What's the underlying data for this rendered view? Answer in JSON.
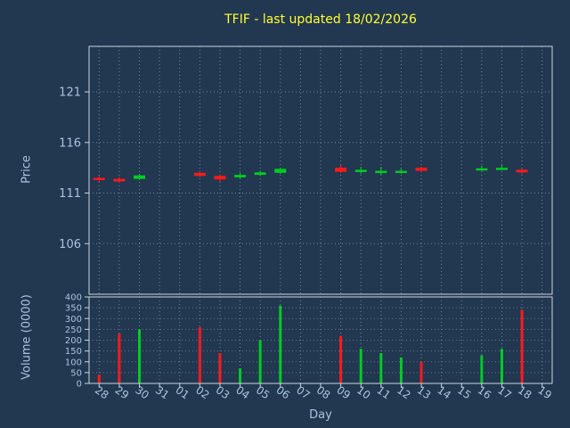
{
  "title": "TFIF - last updated 18/02/2026",
  "colors": {
    "background": "#223750",
    "title_text": "#ffff33",
    "tick_text": "#aac4de",
    "border": "#c8d4e0",
    "grid": "#d8e2ec",
    "up": "#00cc22",
    "down": "#ff1a1a"
  },
  "chart_data": {
    "type": "candlestick_volume",
    "title": "TFIF - last updated 18/02/2026",
    "xlabel": "Day",
    "ylabel_price": "Price",
    "ylabel_volume": "Volume (0000)",
    "legend": "none",
    "grid": "dotted",
    "categories": [
      "28",
      "29",
      "30",
      "31",
      "01",
      "02",
      "03",
      "04",
      "05",
      "06",
      "07",
      "08",
      "09",
      "10",
      "11",
      "12",
      "13",
      "14",
      "15",
      "16",
      "17",
      "18",
      "19"
    ],
    "price_ticks": [
      106,
      111,
      116,
      121
    ],
    "price_ylim": [
      101,
      125.5
    ],
    "volume_ticks": [
      0,
      50,
      100,
      150,
      200,
      250,
      300,
      350,
      400
    ],
    "volume_ylim": [
      0,
      400
    ],
    "candles": [
      {
        "open": 112.5,
        "high": 112.7,
        "low": 112.1,
        "close": 112.3
      },
      {
        "open": 112.4,
        "high": 112.6,
        "low": 112.0,
        "close": 112.15
      },
      {
        "open": 112.4,
        "high": 112.9,
        "low": 112.3,
        "close": 112.75
      },
      null,
      null,
      {
        "open": 113.0,
        "high": 113.1,
        "low": 112.6,
        "close": 112.7
      },
      {
        "open": 112.7,
        "high": 112.8,
        "low": 112.1,
        "close": 112.35
      },
      {
        "open": 112.55,
        "high": 113.0,
        "low": 112.4,
        "close": 112.8
      },
      {
        "open": 112.8,
        "high": 113.2,
        "low": 112.7,
        "close": 113.05
      },
      {
        "open": 113.0,
        "high": 113.5,
        "low": 112.9,
        "close": 113.4
      },
      null,
      null,
      {
        "open": 113.5,
        "high": 113.8,
        "low": 113.0,
        "close": 113.1
      },
      {
        "open": 113.1,
        "high": 113.6,
        "low": 112.9,
        "close": 113.3
      },
      {
        "open": 113.1,
        "high": 113.6,
        "low": 112.8,
        "close": 113.2
      },
      {
        "open": 113.05,
        "high": 113.4,
        "low": 112.9,
        "close": 113.2
      },
      {
        "open": 113.5,
        "high": 113.6,
        "low": 113.1,
        "close": 113.2
      },
      null,
      null,
      {
        "open": 113.3,
        "high": 113.7,
        "low": 113.2,
        "close": 113.45
      },
      {
        "open": 113.4,
        "high": 113.8,
        "low": 113.3,
        "close": 113.5
      },
      {
        "open": 113.3,
        "high": 113.4,
        "low": 112.9,
        "close": 113.05
      },
      null
    ],
    "volumes": [
      40,
      230,
      250,
      null,
      null,
      260,
      140,
      70,
      200,
      360,
      null,
      null,
      220,
      160,
      140,
      120,
      100,
      null,
      null,
      130,
      160,
      340,
      null
    ]
  }
}
